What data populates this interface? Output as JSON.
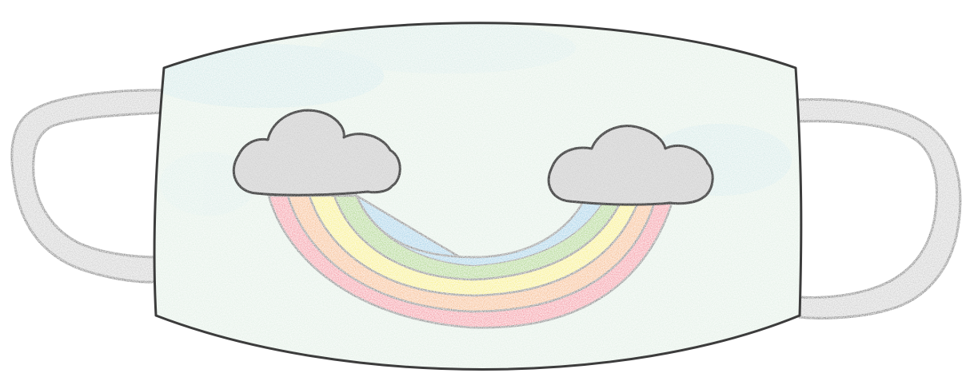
{
  "drawing": {
    "subject": "face-mask",
    "mask_fill": "#dfeee3",
    "mask_tint": "#c9e6e6",
    "outline": "#3c3c3c",
    "strap_fill": "#c8c8c8",
    "cloud_fill": "#e4e4e4",
    "rainbow_bands": [
      {
        "name": "pink",
        "color": "#f47a8c"
      },
      {
        "name": "orange",
        "color": "#f6b066"
      },
      {
        "name": "yellow",
        "color": "#f7ee55"
      },
      {
        "name": "green",
        "color": "#9bd060"
      },
      {
        "name": "blue",
        "color": "#8fcbe6"
      }
    ]
  }
}
